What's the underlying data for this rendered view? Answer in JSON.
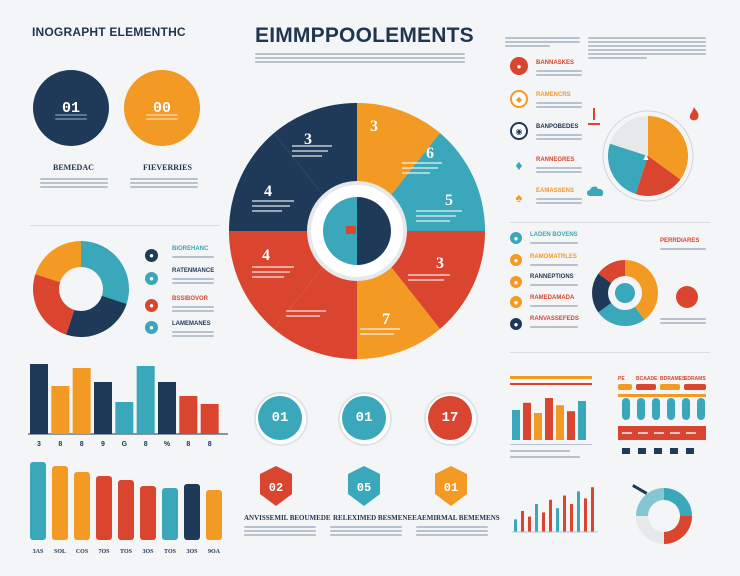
{
  "colors": {
    "navy": "#1f3a58",
    "teal": "#3aa7bb",
    "orange": "#f39a24",
    "red": "#d9452e",
    "light_teal": "#7cc8d4",
    "grey_text": "#b8c2cc"
  },
  "header": {
    "left_title": "INOGRAPHT ELEMENTHC",
    "main_title": "EIMMPPOOLEMENTS"
  },
  "top_circles": [
    {
      "number": "01",
      "label": "BEMEDAC"
    },
    {
      "number": "00",
      "label": "FIEVERRIES"
    }
  ],
  "ring_labels": [
    "BIOREHANC",
    "RATENMANCE",
    "BSSIBOVOR",
    "LAMEMANES"
  ],
  "wheel": {
    "numbers": [
      "3",
      "3",
      "6",
      "5",
      "3",
      "7",
      "4",
      "4"
    ]
  },
  "mid_circles": [
    {
      "number": "01"
    },
    {
      "number": "01"
    },
    {
      "number": "17"
    }
  ],
  "bottom_hex": [
    {
      "number": "02",
      "label": "ANVISSEMIL BEOUMEDE"
    },
    {
      "number": "05",
      "label": "RELEXIMED BESMENEE"
    },
    {
      "number": "01",
      "label": "AEMIRMAL BEMEMENS"
    }
  ],
  "top_bar_chart": {
    "values": [
      70,
      48,
      66,
      52,
      32,
      68,
      52,
      38,
      30
    ],
    "labels": [
      "3",
      "8",
      "8",
      "9",
      "G",
      "8",
      "%",
      "8",
      "8"
    ]
  },
  "bottom_bar_chart": {
    "values": [
      78,
      74,
      68,
      64,
      60,
      54,
      52,
      56,
      50
    ],
    "labels": [
      "3AS",
      "SOL",
      "COS",
      "7OS",
      "TOS",
      "3OS",
      "TOS",
      "3OS",
      "9OA"
    ]
  },
  "right_list": [
    {
      "label": "BANNASKES"
    },
    {
      "label": "RAMENCRS"
    },
    {
      "label": "BANPOBEDES"
    },
    {
      "label": "RANNEGRES"
    },
    {
      "label": "EAMASSENS"
    }
  ],
  "right_list2": [
    {
      "label": "LADEN BOVENS"
    },
    {
      "label": "RAMOMATRLES"
    },
    {
      "label": "RANNEPTIONS"
    },
    {
      "label": "RAMEDAMADA"
    },
    {
      "label": "RANVASSEFEDS"
    }
  ],
  "right_pie": {
    "slices": [
      35,
      20,
      25,
      20
    ]
  },
  "right_donut": {
    "slices": [
      40,
      25,
      20,
      15
    ],
    "label": "PERRDIARES"
  },
  "mini_bars_a": {
    "values": [
      60,
      72,
      55,
      80,
      68,
      58,
      75
    ]
  },
  "mini_bars_b": {
    "values": [
      18,
      30,
      22,
      40,
      28,
      46,
      34,
      52,
      40,
      58,
      48,
      64
    ]
  },
  "pill_row": {
    "labels": [
      "PE",
      "BCAADE",
      "BDRAMES",
      "SDRAMS"
    ]
  }
}
